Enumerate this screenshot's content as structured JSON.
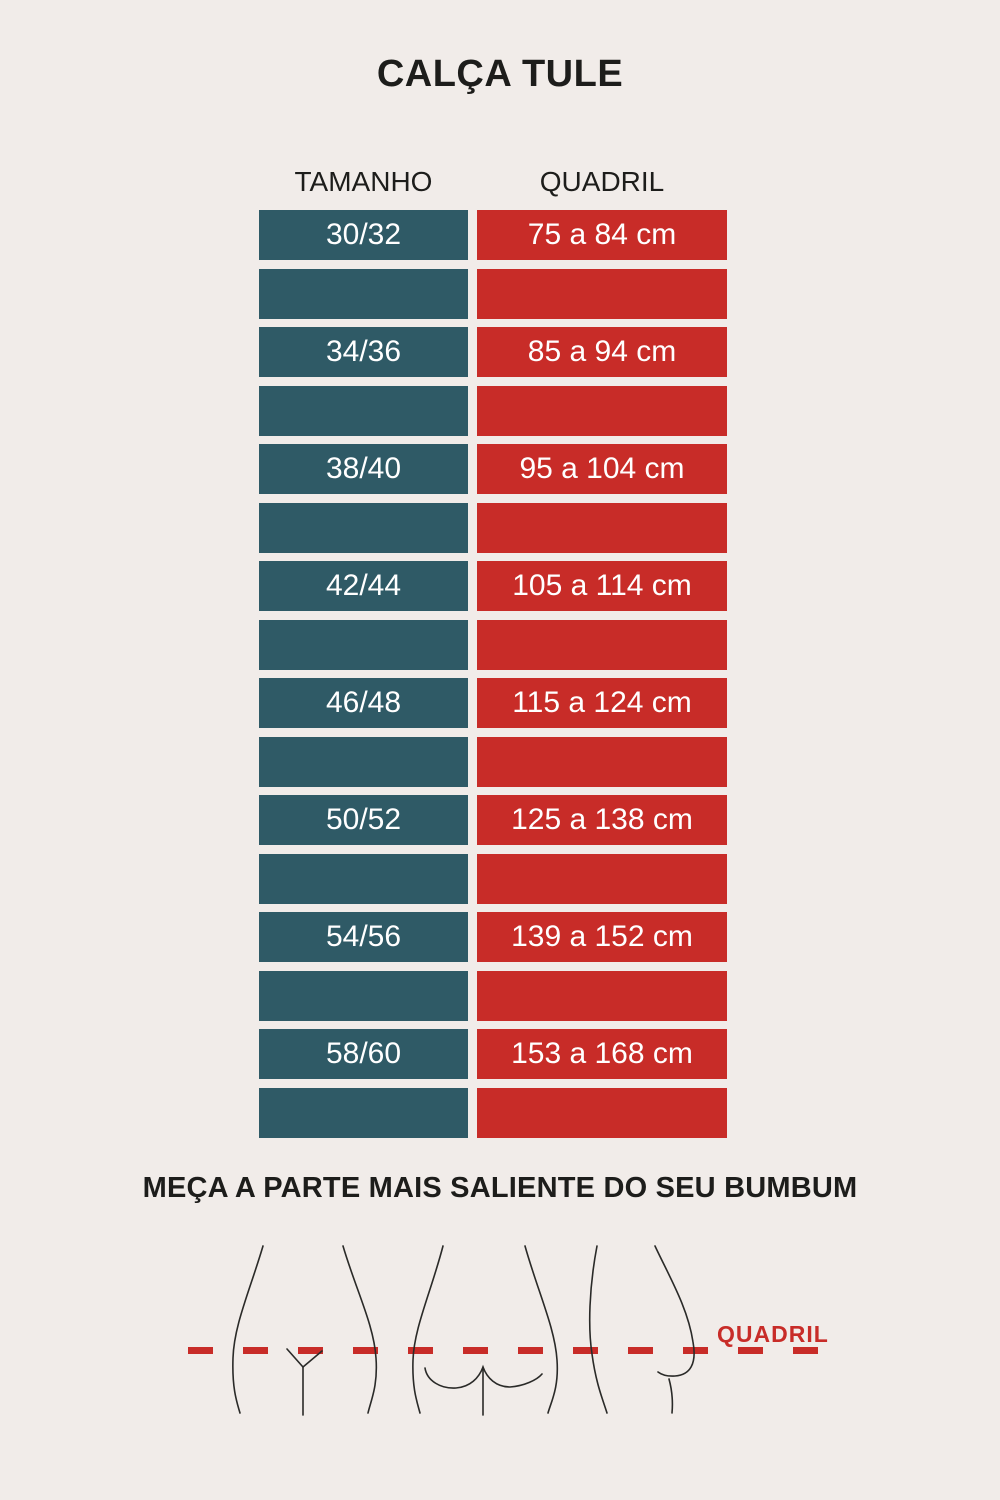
{
  "title": "CALÇA TULE",
  "colors": {
    "background": "#f1ece9",
    "teal": "#2f5a66",
    "red": "#c82c28",
    "text_dark": "#1d1d1b",
    "text_light": "#ffffff"
  },
  "chart_data": {
    "type": "table",
    "title": "CALÇA TULE",
    "columns": [
      "TAMANHO",
      "QUADRIL"
    ],
    "rows": [
      [
        "30/32",
        "75 a 84 cm"
      ],
      [
        "34/36",
        "85 a 94 cm"
      ],
      [
        "38/40",
        "95 a 104 cm"
      ],
      [
        "42/44",
        "105 a 114 cm"
      ],
      [
        "46/48",
        "115 a 124 cm"
      ],
      [
        "50/52",
        "125 a 138 cm"
      ],
      [
        "54/56",
        "139 a 152 cm"
      ],
      [
        "58/60",
        "153 a 168 cm"
      ]
    ],
    "layout_hints": {
      "spacer_bar_after_each_row": true,
      "size_column_color": "#2f5a66",
      "hip_column_color": "#c82c28"
    },
    "footnote": "MEÇA A PARTE MAIS SALIENTE DO SEU BUMBUM",
    "diagram_label": "QUADRIL"
  }
}
